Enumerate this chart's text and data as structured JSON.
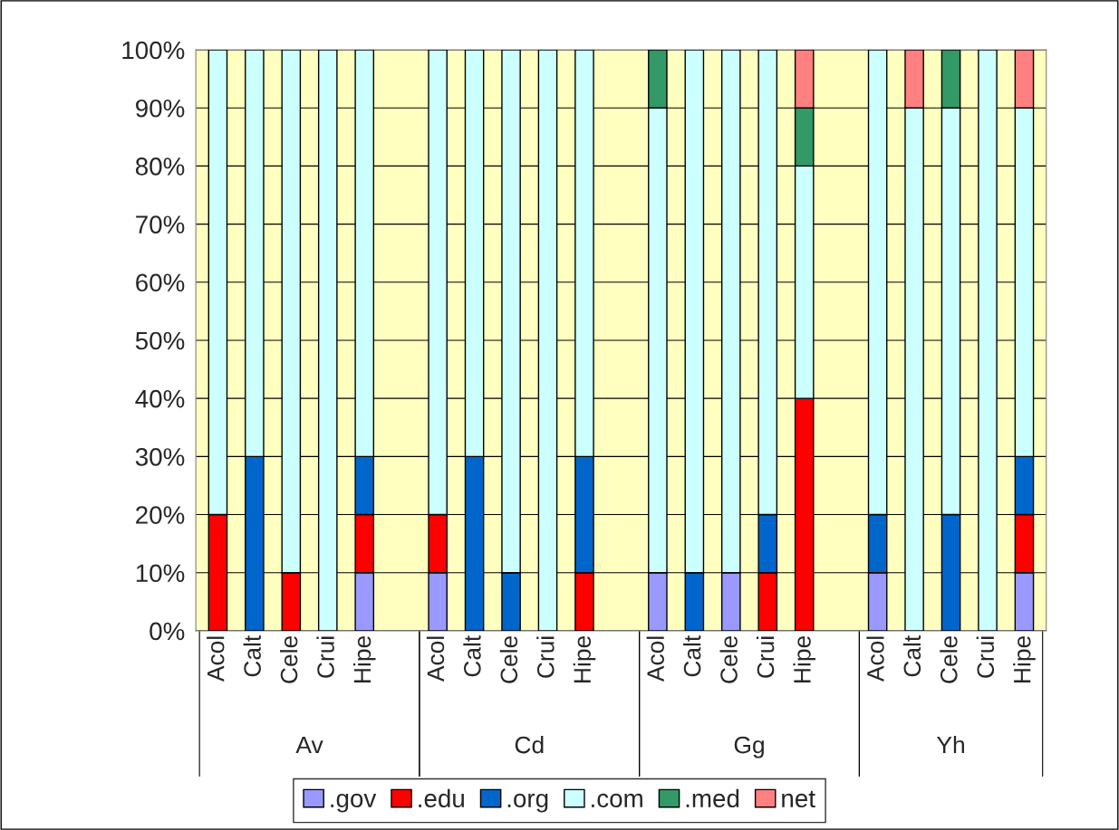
{
  "chart_data": {
    "type": "bar",
    "stacked": true,
    "grid": "y",
    "legend": "bottom",
    "categories": [
      "Acol",
      "Calt",
      "Cele",
      "Crui",
      "Hipe",
      null,
      "Acol",
      "Calt",
      "Cele",
      "Crui",
      "Hipe",
      null,
      "Acol",
      "Calt",
      "Cele",
      "Crui",
      "Hipe",
      null,
      "Acol",
      "Calt",
      "Cele",
      "Crui",
      "Hipe"
    ],
    "annotations": [
      "Av",
      "Cd",
      "Gg",
      "Yh"
    ],
    "ylim": [
      0,
      100
    ],
    "yticks": [
      {
        "value": 0,
        "label": "0%"
      },
      {
        "value": 10,
        "label": "10%"
      },
      {
        "value": 20,
        "label": "20%"
      },
      {
        "value": 30,
        "label": "30%"
      },
      {
        "value": 40,
        "label": "40%"
      },
      {
        "value": 50,
        "label": "50%"
      },
      {
        "value": 60,
        "label": "60%"
      },
      {
        "value": 70,
        "label": "70%"
      },
      {
        "value": 80,
        "label": "80%"
      },
      {
        "value": 90,
        "label": "90%"
      },
      {
        "value": 100,
        "label": "100%"
      }
    ],
    "series": [
      {
        "name": ".gov",
        "color": "#9999ff",
        "values": [
          0,
          0,
          0,
          0,
          10,
          null,
          10,
          0,
          0,
          0,
          0,
          null,
          10,
          0,
          10,
          0,
          0,
          null,
          10,
          0,
          0,
          0,
          10
        ]
      },
      {
        "name": ".edu",
        "color": "#ff0000",
        "values": [
          20,
          0,
          10,
          0,
          10,
          null,
          10,
          0,
          0,
          0,
          10,
          null,
          0,
          0,
          0,
          10,
          40,
          null,
          0,
          0,
          0,
          0,
          10
        ]
      },
      {
        "name": ".org",
        "color": "#0066cc",
        "values": [
          0,
          30,
          0,
          0,
          10,
          null,
          0,
          30,
          10,
          0,
          20,
          null,
          0,
          10,
          0,
          10,
          0,
          null,
          10,
          0,
          20,
          0,
          10
        ]
      },
      {
        "name": ".com",
        "color": "#ccffff",
        "values": [
          80,
          70,
          90,
          100,
          70,
          null,
          80,
          70,
          90,
          100,
          70,
          null,
          80,
          90,
          90,
          80,
          40,
          null,
          80,
          90,
          70,
          100,
          60
        ]
      },
      {
        "name": ".med",
        "color": "#339966",
        "values": [
          0,
          0,
          0,
          0,
          0,
          null,
          0,
          0,
          0,
          0,
          0,
          null,
          10,
          0,
          0,
          0,
          10,
          null,
          0,
          0,
          10,
          0,
          0
        ]
      },
      {
        "name": "net",
        "color": "#ff8080",
        "values": [
          0,
          0,
          0,
          0,
          0,
          null,
          0,
          0,
          0,
          0,
          0,
          null,
          0,
          0,
          0,
          0,
          10,
          null,
          0,
          10,
          0,
          0,
          10
        ]
      }
    ]
  }
}
